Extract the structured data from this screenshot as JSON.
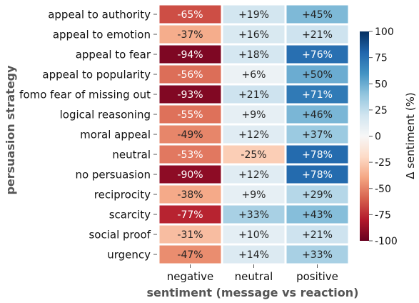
{
  "chart_data": {
    "type": "heatmap",
    "ylabel": "persuasion strategy",
    "xlabel": "sentiment (message vs reaction)",
    "columns": [
      "negative",
      "neutral",
      "positive"
    ],
    "rows": [
      {
        "label": "appeal to authority",
        "values": [
          -65,
          19,
          45
        ],
        "texts": [
          "-65%",
          "+19%",
          "+45%"
        ]
      },
      {
        "label": "appeal to emotion",
        "values": [
          -37,
          16,
          21
        ],
        "texts": [
          "-37%",
          "+16%",
          "+21%"
        ]
      },
      {
        "label": "appeal to fear",
        "values": [
          -94,
          18,
          76
        ],
        "texts": [
          "-94%",
          "+18%",
          "+76%"
        ]
      },
      {
        "label": "appeal to popularity",
        "values": [
          -56,
          6,
          50
        ],
        "texts": [
          "-56%",
          "+6%",
          "+50%"
        ]
      },
      {
        "label": "fomo fear of missing out",
        "values": [
          -93,
          21,
          71
        ],
        "texts": [
          "-93%",
          "+21%",
          "+71%"
        ]
      },
      {
        "label": "logical reasoning",
        "values": [
          -55,
          9,
          46
        ],
        "texts": [
          "-55%",
          "+9%",
          "+46%"
        ]
      },
      {
        "label": "moral appeal",
        "values": [
          -49,
          12,
          37
        ],
        "texts": [
          "-49%",
          "+12%",
          "+37%"
        ]
      },
      {
        "label": "neutral",
        "values": [
          -53,
          -25,
          78
        ],
        "texts": [
          "-53%",
          "-25%",
          "+78%"
        ]
      },
      {
        "label": "no persuasion",
        "values": [
          -90,
          12,
          78
        ],
        "texts": [
          "-90%",
          "+12%",
          "+78%"
        ]
      },
      {
        "label": "reciprocity",
        "values": [
          -38,
          9,
          29
        ],
        "texts": [
          "-38%",
          "+9%",
          "+29%"
        ]
      },
      {
        "label": "scarcity",
        "values": [
          -77,
          33,
          43
        ],
        "texts": [
          "-77%",
          "+33%",
          "+43%"
        ]
      },
      {
        "label": "social proof",
        "values": [
          -31,
          10,
          21
        ],
        "texts": [
          "-31%",
          "+10%",
          "+21%"
        ]
      },
      {
        "label": "urgency",
        "values": [
          -47,
          14,
          33
        ],
        "texts": [
          "-47%",
          "+14%",
          "+33%"
        ]
      }
    ],
    "colorbar": {
      "label": "Δ sentiment (%)",
      "range": [
        -100,
        100
      ],
      "ticks": [
        100,
        75,
        50,
        25,
        0,
        -25,
        -50,
        -75,
        -100
      ],
      "colormap": "RdBu"
    }
  }
}
